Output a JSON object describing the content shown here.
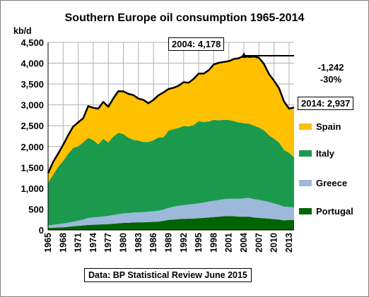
{
  "chart_data": {
    "type": "area",
    "title": "Southern Europe oil consumption 1965-2014",
    "ylabel": "kb/d",
    "xlabel": "",
    "ylim": [
      0,
      4500
    ],
    "yticks": [
      0,
      500,
      1000,
      1500,
      2000,
      2500,
      3000,
      3500,
      4000,
      4500
    ],
    "ytick_labels": [
      "0",
      "500",
      "1,000",
      "1,500",
      "2,000",
      "2,500",
      "3,000",
      "3,500",
      "4,000",
      "4,500"
    ],
    "xticks": [
      "1965",
      "1968",
      "1971",
      "1974",
      "1977",
      "1980",
      "1983",
      "1986",
      "1989",
      "1992",
      "1995",
      "1998",
      "2001",
      "2004",
      "2007",
      "2010",
      "2013"
    ],
    "stacked": true,
    "grid": true,
    "legend_position": "right",
    "years": [
      1965,
      1966,
      1967,
      1968,
      1969,
      1970,
      1971,
      1972,
      1973,
      1974,
      1975,
      1976,
      1977,
      1978,
      1979,
      1980,
      1981,
      1982,
      1983,
      1984,
      1985,
      1986,
      1987,
      1988,
      1989,
      1990,
      1991,
      1992,
      1993,
      1994,
      1995,
      1996,
      1997,
      1998,
      1999,
      2000,
      2001,
      2002,
      2003,
      2004,
      2005,
      2006,
      2007,
      2008,
      2009,
      2010,
      2011,
      2012,
      2013,
      2014
    ],
    "series": [
      {
        "name": "Portugal",
        "color": "#006400",
        "values": [
          50,
          55,
          60,
          65,
          75,
          90,
          100,
          110,
          120,
          125,
          130,
          135,
          140,
          150,
          160,
          170,
          175,
          180,
          185,
          185,
          190,
          195,
          200,
          220,
          240,
          250,
          260,
          265,
          270,
          275,
          280,
          290,
          300,
          310,
          320,
          330,
          330,
          330,
          320,
          320,
          320,
          300,
          290,
          280,
          270,
          260,
          250,
          230,
          240,
          240
        ]
      },
      {
        "name": "Greece",
        "color": "#9DB8DA",
        "values": [
          60,
          70,
          80,
          90,
          100,
          110,
          120,
          140,
          170,
          180,
          180,
          190,
          200,
          210,
          220,
          230,
          230,
          240,
          240,
          245,
          250,
          255,
          260,
          270,
          290,
          310,
          320,
          330,
          340,
          350,
          360,
          370,
          380,
          390,
          400,
          410,
          420,
          420,
          430,
          440,
          450,
          440,
          430,
          420,
          400,
          380,
          350,
          330,
          310,
          300
        ]
      },
      {
        "name": "Italy",
        "color": "#1B9A4E",
        "values": [
          1020,
          1200,
          1370,
          1500,
          1650,
          1770,
          1790,
          1850,
          1920,
          1850,
          1740,
          1860,
          1760,
          1880,
          1950,
          1900,
          1810,
          1740,
          1720,
          1680,
          1670,
          1700,
          1760,
          1730,
          1850,
          1860,
          1870,
          1900,
          1870,
          1890,
          1970,
          1930,
          1920,
          1940,
          1910,
          1900,
          1890,
          1860,
          1830,
          1800,
          1780,
          1760,
          1740,
          1690,
          1600,
          1550,
          1500,
          1360,
          1300,
          1200
        ]
      },
      {
        "name": "Spain",
        "color": "#FFC000",
        "values": [
          230,
          305,
          320,
          385,
          445,
          510,
          570,
          580,
          760,
          775,
          860,
          885,
          855,
          915,
          1000,
          1025,
          1050,
          1075,
          1005,
          1010,
          930,
          970,
          1010,
          1080,
          1000,
          990,
          1010,
          1050,
          1050,
          1110,
          1140,
          1160,
          1230,
          1330,
          1380,
          1390,
          1410,
          1490,
          1540,
          1618,
          1600,
          1660,
          1670,
          1590,
          1470,
          1390,
          1300,
          1160,
          1060,
          1197
        ]
      }
    ],
    "annotations": {
      "peak_label": "2004: 4,178",
      "peak_year": 2004,
      "peak_value": 4178,
      "end_label": "2014: 2,937",
      "change_abs": "-1,242",
      "change_pct": "-30%",
      "source": "Data: BP Statistical Review June 2015"
    }
  }
}
